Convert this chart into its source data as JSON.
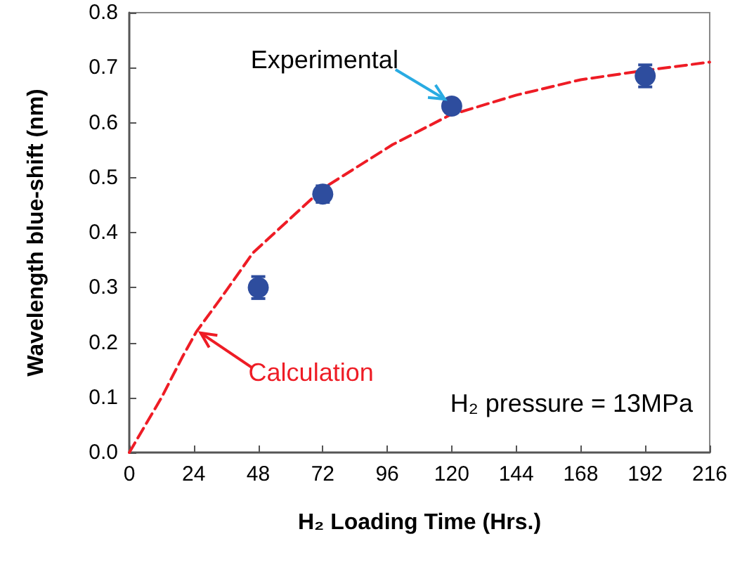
{
  "chart_data": {
    "type": "scatter",
    "xlabel": "H₂ Loading Time (Hrs.)",
    "ylabel": "Wavelength blue-shift (nm)",
    "xlim": [
      0,
      216
    ],
    "xticks": [
      0,
      24,
      48,
      72,
      96,
      120,
      144,
      168,
      192,
      216
    ],
    "ylim": [
      0,
      0.8
    ],
    "yticks": [
      {
        "value": 0,
        "label": "0.0"
      },
      0.1,
      0.2,
      0.3,
      0.4,
      0.5,
      0.6,
      0.7,
      0.8
    ],
    "series": [
      {
        "type": "line",
        "color": "#ee1c25",
        "line_style": "dashed",
        "marker": "none",
        "x": [
          0,
          12,
          20,
          25,
          34,
          46,
          72,
          98,
          119,
          144,
          168,
          192,
          216
        ],
        "values": [
          0,
          0.1,
          0.176,
          0.22,
          0.28,
          0.363,
          0.48,
          0.56,
          0.613,
          0.65,
          0.678,
          0.695,
          0.71
        ]
      },
      {
        "color": "#2e4d9e",
        "marker": "circle",
        "x": [
          48,
          72,
          120,
          192
        ],
        "values": [
          0.3,
          0.47,
          0.63,
          0.685
        ],
        "errors": [
          0.02,
          0.015,
          0.01,
          0.02
        ]
      }
    ],
    "annotations": [
      {
        "text": "Experimental",
        "x": 120,
        "y": 0.63
      },
      {
        "text": "Calculation",
        "x": 25,
        "y": 0.22
      },
      "H₂ pressure = 13MPa"
    ]
  }
}
